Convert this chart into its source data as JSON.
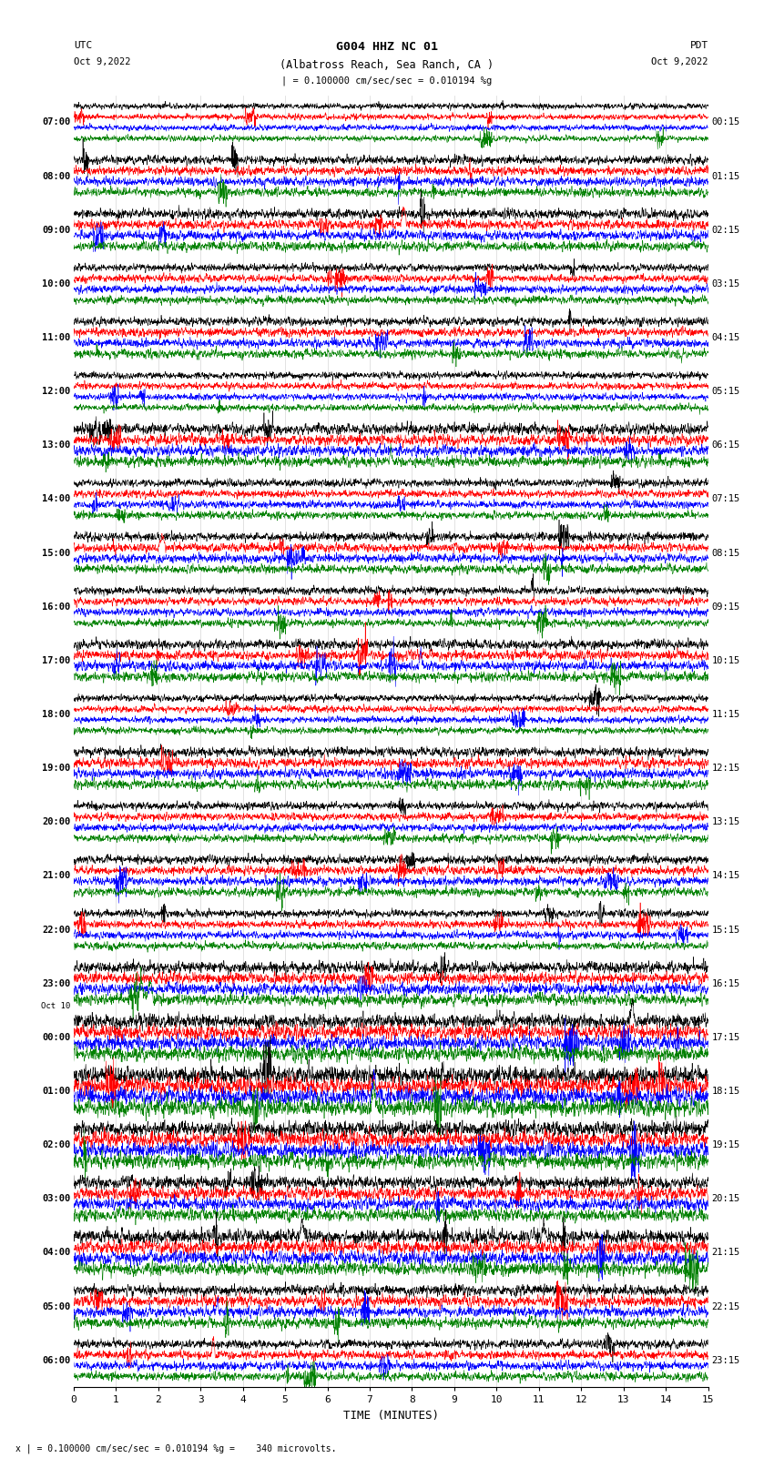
{
  "title_line1": "G004 HHZ NC 01",
  "title_line2": "(Albatross Reach, Sea Ranch, CA )",
  "scale_label": "| = 0.100000 cm/sec/sec = 0.010194 %g",
  "footer_note": "x | = 0.100000 cm/sec/sec = 0.010194 %g =    340 microvolts.",
  "xlabel": "TIME (MINUTES)",
  "xlim": [
    0,
    15
  ],
  "xticks": [
    0,
    1,
    2,
    3,
    4,
    5,
    6,
    7,
    8,
    9,
    10,
    11,
    12,
    13,
    14,
    15
  ],
  "left_times": [
    "07:00",
    "08:00",
    "09:00",
    "10:00",
    "11:00",
    "12:00",
    "13:00",
    "14:00",
    "15:00",
    "16:00",
    "17:00",
    "18:00",
    "19:00",
    "20:00",
    "21:00",
    "22:00",
    "23:00",
    "00:00",
    "01:00",
    "02:00",
    "03:00",
    "04:00",
    "05:00",
    "06:00"
  ],
  "right_times": [
    "00:15",
    "01:15",
    "02:15",
    "03:15",
    "04:15",
    "05:15",
    "06:15",
    "07:15",
    "08:15",
    "09:15",
    "10:15",
    "11:15",
    "12:15",
    "13:15",
    "14:15",
    "15:15",
    "16:15",
    "17:15",
    "18:15",
    "19:15",
    "20:15",
    "21:15",
    "22:15",
    "23:15"
  ],
  "oct10_row": 17,
  "trace_colors": [
    "black",
    "red",
    "blue",
    "green"
  ],
  "bg_color": "white",
  "num_rows": 24,
  "traces_per_row": 4,
  "noise_seed": 12345,
  "N_samples": 2700,
  "base_amplitude": 0.055,
  "lw": 0.4
}
